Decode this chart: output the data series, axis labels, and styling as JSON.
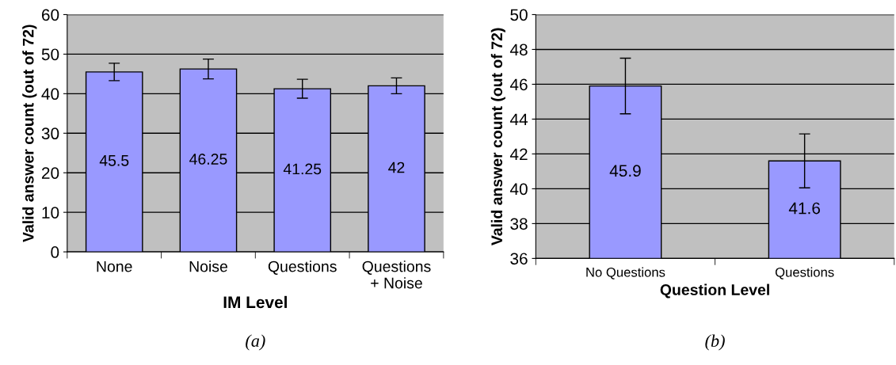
{
  "chart_data": [
    {
      "type": "bar",
      "xlabel": "IM Level",
      "ylabel": "Valid answer count (out of 72)",
      "categories": [
        "None",
        "Noise",
        "Questions",
        "Questions\n+ Noise"
      ],
      "values": [
        45.5,
        46.25,
        41.25,
        42
      ],
      "errors": [
        2.2,
        2.5,
        2.4,
        2
      ],
      "color": "#9999ff",
      "ylim": [
        0,
        60
      ],
      "yticks": [
        0,
        10,
        20,
        30,
        40,
        50,
        60
      ],
      "grid": "y",
      "data_labels": true,
      "legend": false,
      "annotations": [
        "(a)"
      ]
    },
    {
      "type": "bar",
      "xlabel": "Question Level",
      "ylabel": "Valid answer count (out of 72)",
      "categories": [
        "No Questions",
        "Questions"
      ],
      "values": [
        45.9,
        41.6
      ],
      "errors": [
        1.6,
        1.55
      ],
      "color": "#9999ff",
      "ylim": [
        36,
        50
      ],
      "yticks": [
        36,
        38,
        40,
        42,
        44,
        46,
        48,
        50
      ],
      "grid": "y",
      "data_labels": true,
      "legend": false,
      "annotations": [
        "(b)"
      ]
    }
  ]
}
